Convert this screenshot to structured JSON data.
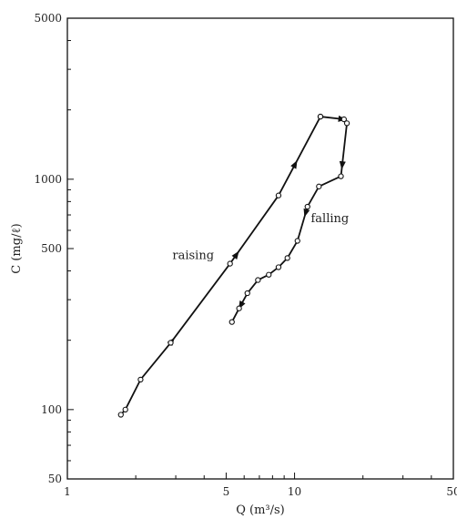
{
  "chart_data": {
    "type": "line",
    "title": "",
    "xlabel": "Q (m³/s)",
    "ylabel": "C (mg/ℓ)",
    "xscale": "log",
    "yscale": "log",
    "xlim": [
      1,
      50
    ],
    "ylim": [
      50,
      5000
    ],
    "x_ticks": [
      1,
      5,
      10,
      50
    ],
    "x_tick_labels": [
      "1",
      "5",
      "10",
      "50"
    ],
    "y_ticks": [
      50,
      100,
      500,
      1000,
      5000
    ],
    "y_tick_labels": [
      "50",
      "100",
      "500",
      "1000",
      "5000"
    ],
    "grid": false,
    "legend": "none",
    "colors": {
      "line": "#111111",
      "marker_fill": "#ffffff"
    },
    "series": [
      {
        "name": "raising",
        "x": [
          1.72,
          1.8,
          2.1,
          2.85,
          5.2,
          8.5,
          13.0
        ],
        "y": [
          95,
          100,
          135,
          195,
          430,
          850,
          1870
        ],
        "arrows_at": [
          0.85,
          0.55,
          0.25
        ]
      },
      {
        "name": "falling",
        "x": [
          13.0,
          16.5,
          17.0,
          16.0,
          12.8,
          11.4,
          10.3,
          9.3,
          8.5,
          7.7,
          6.9,
          6.2,
          5.7,
          5.3
        ],
        "y": [
          1870,
          1820,
          1750,
          1030,
          930,
          760,
          540,
          455,
          415,
          385,
          365,
          320,
          275,
          240
        ],
        "arrows_at": [
          0.08,
          0.26,
          0.5,
          0.93
        ]
      }
    ],
    "annotations": [
      {
        "text": "raising",
        "x": 2.9,
        "y": 450
      },
      {
        "text": "falling",
        "x": 11.8,
        "y": 650
      }
    ]
  }
}
